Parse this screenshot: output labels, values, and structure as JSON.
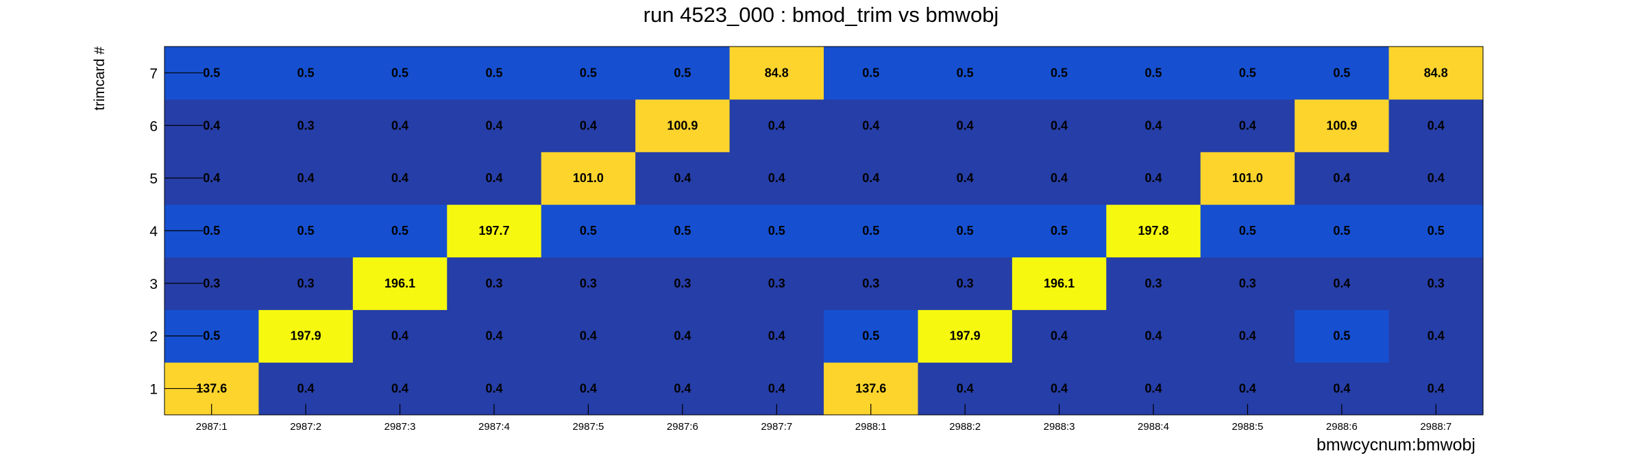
{
  "chart_data": {
    "type": "heatmap",
    "title": "run 4523_000 : bmod_trim vs bmwobj",
    "xlabel": "bmwcycnum:bmwobj",
    "ylabel": "trimcard #",
    "x_categories": [
      "2987:1",
      "2987:2",
      "2987:3",
      "2987:4",
      "2987:5",
      "2987:6",
      "2987:7",
      "2988:1",
      "2988:2",
      "2988:3",
      "2988:4",
      "2988:5",
      "2988:6",
      "2988:7"
    ],
    "y_categories": [
      "1",
      "2",
      "3",
      "4",
      "5",
      "6",
      "7"
    ],
    "cells": [
      [
        "137.6",
        "0.4",
        "0.4",
        "0.4",
        "0.4",
        "0.4",
        "0.4",
        "137.6",
        "0.4",
        "0.4",
        "0.4",
        "0.4",
        "0.4",
        "0.4"
      ],
      [
        "0.5",
        "197.9",
        "0.4",
        "0.4",
        "0.4",
        "0.4",
        "0.4",
        "0.5",
        "197.9",
        "0.4",
        "0.4",
        "0.4",
        "0.5",
        "0.4"
      ],
      [
        "0.3",
        "0.3",
        "196.1",
        "0.3",
        "0.3",
        "0.3",
        "0.3",
        "0.3",
        "0.3",
        "196.1",
        "0.3",
        "0.3",
        "0.4",
        "0.3"
      ],
      [
        "0.5",
        "0.5",
        "0.5",
        "197.7",
        "0.5",
        "0.5",
        "0.5",
        "0.5",
        "0.5",
        "0.5",
        "197.8",
        "0.5",
        "0.5",
        "0.5"
      ],
      [
        "0.4",
        "0.4",
        "0.4",
        "0.4",
        "101.0",
        "0.4",
        "0.4",
        "0.4",
        "0.4",
        "0.4",
        "0.4",
        "101.0",
        "0.4",
        "0.4"
      ],
      [
        "0.4",
        "0.3",
        "0.4",
        "0.4",
        "0.4",
        "100.9",
        "0.4",
        "0.4",
        "0.4",
        "0.4",
        "0.4",
        "0.4",
        "100.9",
        "0.4"
      ],
      [
        "0.5",
        "0.5",
        "0.5",
        "0.5",
        "0.5",
        "0.5",
        "84.8",
        "0.5",
        "0.5",
        "0.5",
        "0.5",
        "0.5",
        "0.5",
        "84.8"
      ]
    ],
    "color_scale": {
      "low_dark": "#263ea7",
      "low_light": "#1650d0",
      "mid": "#fcd42c",
      "high": "#f6f90f"
    },
    "grid": false,
    "legend": "none"
  }
}
